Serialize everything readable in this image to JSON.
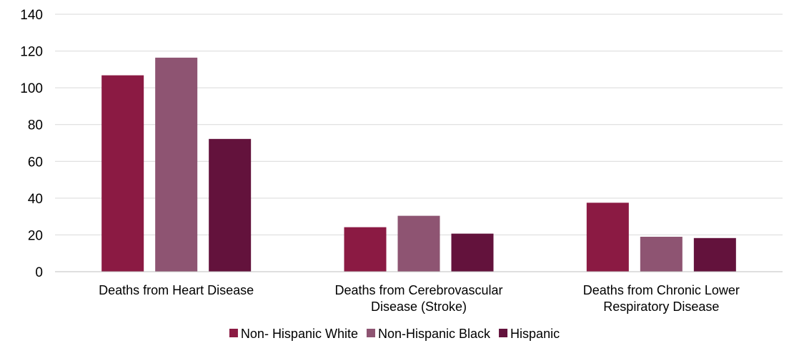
{
  "chart_data": {
    "type": "bar",
    "categories": [
      [
        "Deaths from Heart Disease"
      ],
      [
        "Deaths from Cerebrovascular",
        "Disease (Stroke)"
      ],
      [
        "Deaths from Chronic Lower",
        "Respiratory Disease"
      ]
    ],
    "series": [
      {
        "name": "Non- Hispanic White",
        "color": "#8B1A43",
        "values": [
          106.8,
          24.2,
          37.5
        ]
      },
      {
        "name": "Non-Hispanic Black",
        "color": "#8E5472",
        "values": [
          116.4,
          30.4,
          19.0
        ]
      },
      {
        "name": "Hispanic",
        "color": "#63123C",
        "values": [
          72.2,
          20.7,
          18.3
        ]
      }
    ],
    "yaxis": {
      "min": 0,
      "max": 140,
      "ticks": [
        "0",
        "20",
        "40",
        "60",
        "80",
        "100",
        "120",
        "140"
      ]
    },
    "grid": true,
    "legend_position": "bottom",
    "colors": {
      "gridline": "#D9D9D9",
      "axis_line": "#BFBFBF",
      "text": "#000000"
    }
  }
}
